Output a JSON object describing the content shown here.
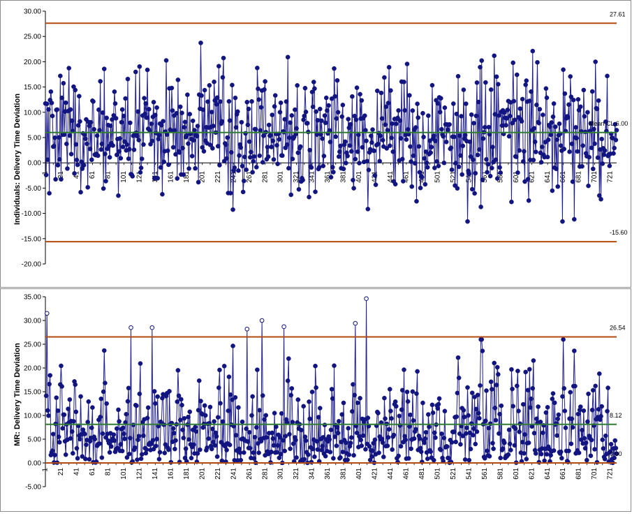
{
  "chart_data": [
    {
      "type": "line",
      "ylabel": "Individuals: Delivery Time Deviation",
      "ylim": [
        -20,
        30
      ],
      "yticks": [
        "30.00",
        "25.00",
        "20.00",
        "15.00",
        "10.00",
        "5.00",
        "0.00",
        "-5.00",
        "-10.00",
        "-15.00",
        "-20.00"
      ],
      "xticks": [
        "1",
        "21",
        "41",
        "61",
        "81",
        "101",
        "121",
        "141",
        "161",
        "181",
        "201",
        "221",
        "241",
        "261",
        "281",
        "301",
        "321",
        "341",
        "361",
        "381",
        "401",
        "421",
        "441",
        "461",
        "481",
        "501",
        "521",
        "541",
        "561",
        "581",
        "601",
        "621",
        "641",
        "661",
        "681",
        "701",
        "721"
      ],
      "n_points": 729,
      "center": {
        "value": 6.0,
        "label": "Mean CL 6.00"
      },
      "ucl": {
        "value": 27.61,
        "label": "27.61"
      },
      "lcl": {
        "value": -15.6,
        "label": "-15.60"
      },
      "colors": {
        "series": "#1f1f8f",
        "marker": "#121480",
        "center": "#2e7d32",
        "limits": "#b24a10"
      }
    },
    {
      "type": "line",
      "ylabel": "MR: Delivery Time Deviation",
      "ylim": [
        -5,
        35
      ],
      "yticks": [
        "35.00",
        "30.00",
        "25.00",
        "20.00",
        "15.00",
        "10.00",
        "5.00",
        "0.00",
        "-5.00"
      ],
      "xticks": [
        "1",
        "21",
        "41",
        "61",
        "81",
        "101",
        "121",
        "141",
        "161",
        "181",
        "201",
        "221",
        "241",
        "261",
        "281",
        "301",
        "321",
        "341",
        "361",
        "381",
        "401",
        "421",
        "441",
        "461",
        "481",
        "501",
        "521",
        "541",
        "561",
        "581",
        "601",
        "621",
        "641",
        "661",
        "681",
        "701",
        "721"
      ],
      "n_points": 729,
      "center": {
        "value": 8.12,
        "label": "8.12"
      },
      "ucl": {
        "value": 26.54,
        "label": "26.54"
      },
      "lcl": {
        "value": 0.0,
        "label": "0.00"
      },
      "out_of_control": [
        [
          3,
          31.5
        ],
        [
          110,
          28.5
        ],
        [
          137,
          28.5
        ],
        [
          258,
          28.2
        ],
        [
          277,
          30.0
        ],
        [
          305,
          28.7
        ],
        [
          396,
          29.4
        ],
        [
          410,
          34.6
        ]
      ],
      "colors": {
        "series": "#1f1f8f",
        "marker": "#121480",
        "center": "#2e7d32",
        "limits": "#b24a10"
      }
    }
  ]
}
